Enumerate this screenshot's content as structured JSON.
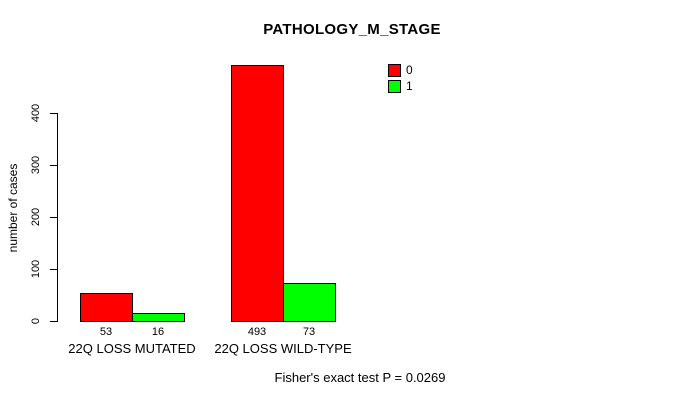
{
  "chart_data": {
    "type": "bar",
    "title": "PATHOLOGY_M_STAGE",
    "xlabel": "",
    "ylabel": "number of cases",
    "categories": [
      "22Q LOSS MUTATED",
      "22Q LOSS WILD-TYPE"
    ],
    "series": [
      {
        "name": "0",
        "color": "#ff0000",
        "values": [
          53,
          493
        ]
      },
      {
        "name": "1",
        "color": "#00ff00",
        "values": [
          16,
          73
        ]
      }
    ],
    "yticks": [
      0,
      100,
      200,
      300,
      400
    ],
    "ylim": [
      0,
      400
    ],
    "grid": false,
    "legend_position": "top-right",
    "annotation": "Fisher's exact test P = 0.0269"
  },
  "colors": {
    "series0": "#ff0000",
    "series1": "#00ff00",
    "axis": "#000000",
    "background": "#ffffff"
  }
}
